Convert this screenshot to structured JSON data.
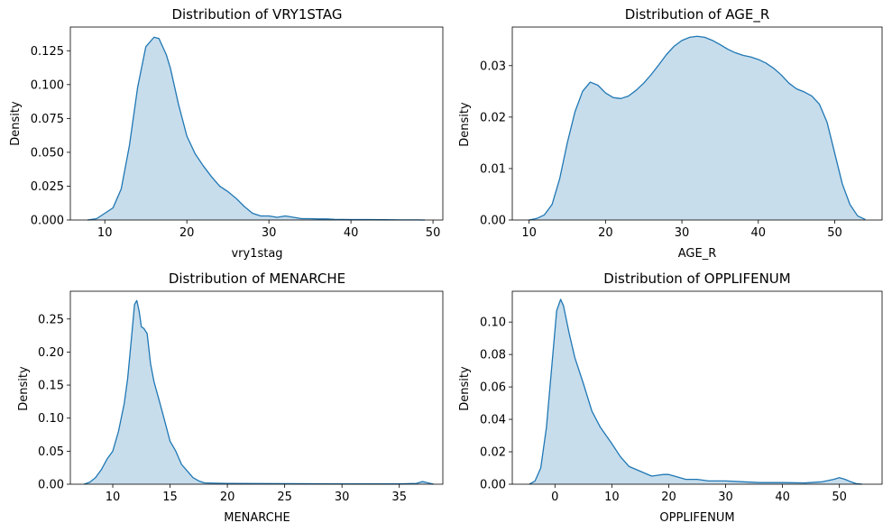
{
  "colors": {
    "line": "#1f77b4",
    "fill": "#1f77b4",
    "frame": "#000000"
  },
  "chart_data": [
    {
      "type": "area",
      "title": "Distribution of VRY1STAG",
      "xlabel": "vry1stag",
      "ylabel": "Density",
      "xlim": [
        5.8,
        51.2
      ],
      "ylim": [
        0,
        0.1425
      ],
      "xticks": [
        10,
        20,
        30,
        40,
        50
      ],
      "yticks": [
        0.0,
        0.025,
        0.05,
        0.075,
        0.1,
        0.125
      ],
      "ytick_labels": [
        "0.000",
        "0.025",
        "0.050",
        "0.075",
        "0.100",
        "0.125"
      ],
      "series": [
        {
          "name": "vry1stag",
          "x": [
            7.9,
            9,
            10,
            11,
            12,
            13,
            14,
            15,
            16,
            16.6,
            17.5,
            18,
            19,
            20,
            21,
            22,
            23,
            24,
            25,
            26,
            27,
            28,
            29,
            30,
            31,
            32,
            33,
            34,
            35,
            36,
            37,
            38,
            40,
            42,
            44,
            46,
            48,
            49
          ],
          "y": [
            0,
            0.001,
            0.005,
            0.009,
            0.023,
            0.055,
            0.098,
            0.128,
            0.135,
            0.134,
            0.122,
            0.112,
            0.085,
            0.062,
            0.049,
            0.04,
            0.032,
            0.025,
            0.021,
            0.016,
            0.01,
            0.005,
            0.003,
            0.003,
            0.002,
            0.003,
            0.002,
            0.001,
            0.001,
            0.0008,
            0.0008,
            0.0005,
            0.0003,
            0.0003,
            0.0002,
            0.0001,
            0.0001,
            0
          ]
        }
      ]
    },
    {
      "type": "area",
      "title": "Distribution of AGE_R",
      "xlabel": "AGE_R",
      "ylabel": "Density",
      "xlim": [
        7.8,
        56.2
      ],
      "ylim": [
        0,
        0.0375
      ],
      "xticks": [
        10,
        20,
        30,
        40,
        50
      ],
      "yticks": [
        0.0,
        0.01,
        0.02,
        0.03
      ],
      "ytick_labels": [
        "0.00",
        "0.01",
        "0.02",
        "0.03"
      ],
      "series": [
        {
          "name": "AGE_R",
          "x": [
            10,
            11,
            12,
            13,
            14,
            15,
            16,
            17,
            18,
            19,
            20,
            21,
            22,
            23,
            24,
            25,
            26,
            27,
            28,
            29,
            30,
            31,
            32,
            33,
            34,
            35,
            36,
            37,
            38,
            39,
            40,
            41,
            42,
            43,
            44,
            45,
            46,
            47,
            48,
            49,
            50,
            51,
            52,
            53,
            54
          ],
          "y": [
            0,
            0.0003,
            0.001,
            0.003,
            0.008,
            0.015,
            0.021,
            0.025,
            0.0268,
            0.0262,
            0.0247,
            0.0238,
            0.0236,
            0.0241,
            0.0252,
            0.0266,
            0.0283,
            0.0302,
            0.0322,
            0.0338,
            0.0349,
            0.0355,
            0.0357,
            0.0355,
            0.0349,
            0.0341,
            0.0332,
            0.0325,
            0.032,
            0.0317,
            0.0312,
            0.0305,
            0.0295,
            0.0282,
            0.0266,
            0.0255,
            0.0249,
            0.0241,
            0.0225,
            0.019,
            0.013,
            0.007,
            0.003,
            0.0008,
            0.0001
          ]
        }
      ]
    },
    {
      "type": "area",
      "title": "Distribution of MENARCHE",
      "xlabel": "MENARCHE",
      "ylabel": "Density",
      "xlim": [
        6.3,
        38.8
      ],
      "ylim": [
        0,
        0.292
      ],
      "xticks": [
        10,
        15,
        20,
        25,
        30,
        35
      ],
      "yticks": [
        0.0,
        0.05,
        0.1,
        0.15,
        0.2,
        0.25
      ],
      "ytick_labels": [
        "0.00",
        "0.05",
        "0.10",
        "0.15",
        "0.20",
        "0.25"
      ],
      "series": [
        {
          "name": "MENARCHE",
          "x": [
            7.5,
            8,
            8.5,
            9,
            9.5,
            10,
            10.5,
            11,
            11.3,
            11.6,
            11.9,
            12.1,
            12.3,
            12.5,
            12.7,
            13,
            13.3,
            13.6,
            14,
            14.5,
            15,
            15.5,
            16,
            16.5,
            17,
            17.5,
            18,
            19,
            20,
            25,
            30,
            35,
            36.5,
            37,
            37.5,
            38
          ],
          "y": [
            0,
            0.003,
            0.01,
            0.022,
            0.038,
            0.05,
            0.08,
            0.122,
            0.16,
            0.215,
            0.272,
            0.278,
            0.262,
            0.238,
            0.236,
            0.228,
            0.182,
            0.155,
            0.13,
            0.098,
            0.065,
            0.05,
            0.03,
            0.02,
            0.01,
            0.005,
            0.002,
            0.0015,
            0.0012,
            0.0008,
            0.0005,
            0.0004,
            0.0012,
            0.004,
            0.002,
            0
          ]
        }
      ]
    },
    {
      "type": "area",
      "title": "Distribution of OPPLIFENUM",
      "xlabel": "OPPLIFENUM",
      "ylabel": "Density",
      "xlim": [
        -7.5,
        57.5
      ],
      "ylim": [
        0,
        0.119
      ],
      "xticks": [
        0,
        10,
        20,
        30,
        40,
        50
      ],
      "yticks": [
        0.0,
        0.02,
        0.04,
        0.06,
        0.08,
        0.1
      ],
      "ytick_labels": [
        "0.00",
        "0.02",
        "0.04",
        "0.06",
        "0.08",
        "0.10"
      ],
      "series": [
        {
          "name": "OPPLIFENUM",
          "x": [
            -4.5,
            -3.5,
            -2.5,
            -1.5,
            -0.5,
            0.3,
            1,
            1.5,
            2.5,
            3.5,
            5,
            6.5,
            8,
            10,
            11.5,
            13,
            15,
            17,
            19,
            20,
            21,
            23,
            25,
            27,
            30,
            33,
            36,
            40,
            44,
            47,
            49,
            50,
            51,
            52,
            53,
            54
          ],
          "y": [
            0,
            0.002,
            0.01,
            0.035,
            0.075,
            0.107,
            0.114,
            0.11,
            0.093,
            0.078,
            0.062,
            0.045,
            0.035,
            0.025,
            0.017,
            0.011,
            0.008,
            0.005,
            0.006,
            0.006,
            0.005,
            0.003,
            0.003,
            0.002,
            0.002,
            0.0015,
            0.001,
            0.001,
            0.0008,
            0.0015,
            0.003,
            0.004,
            0.003,
            0.0015,
            0.0003,
            0
          ]
        }
      ]
    }
  ]
}
